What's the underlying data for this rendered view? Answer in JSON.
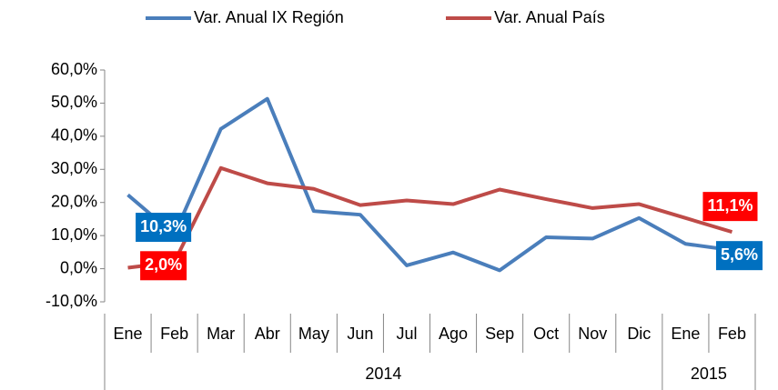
{
  "chart_data": {
    "type": "line",
    "categories": [
      "Ene",
      "Feb",
      "Mar",
      "Abr",
      "May",
      "Jun",
      "Jul",
      "Ago",
      "Sep",
      "Oct",
      "Nov",
      "Dic",
      "Ene",
      "Feb"
    ],
    "group_labels": [
      "2014",
      "2015"
    ],
    "group_sizes": [
      12,
      2
    ],
    "series": [
      {
        "name": "Var. Anual IX Región",
        "color": "#4a7ebb",
        "label_color": "#0070c0",
        "values": [
          22.3,
          10.3,
          42.2,
          51.3,
          17.4,
          16.3,
          1.0,
          4.9,
          -0.5,
          9.5,
          9.1,
          15.3,
          7.5,
          5.6
        ],
        "value_labels": [
          null,
          "10,3%",
          null,
          null,
          null,
          null,
          null,
          null,
          null,
          null,
          null,
          null,
          null,
          "5,6%"
        ]
      },
      {
        "name": "Var. Anual País",
        "color": "#be4b48",
        "label_color": "#ff0000",
        "values": [
          0.3,
          2.0,
          30.4,
          25.8,
          24.1,
          19.2,
          20.6,
          19.5,
          23.9,
          21.0,
          18.3,
          19.5,
          15.3,
          11.1
        ],
        "value_labels": [
          null,
          "2,0%",
          null,
          null,
          null,
          null,
          null,
          null,
          null,
          null,
          null,
          null,
          null,
          "11,1%"
        ]
      }
    ],
    "ylim": [
      -10,
      60
    ],
    "yticks": [
      {
        "value": -10,
        "label": "-10,0%"
      },
      {
        "value": 0,
        "label": "0,0%"
      },
      {
        "value": 10,
        "label": "10,0%"
      },
      {
        "value": 20,
        "label": "20,0%"
      },
      {
        "value": 30,
        "label": "30,0%"
      },
      {
        "value": 40,
        "label": "40,0%"
      },
      {
        "value": 50,
        "label": "50,0%"
      },
      {
        "value": 60,
        "label": "60,0%"
      }
    ]
  }
}
